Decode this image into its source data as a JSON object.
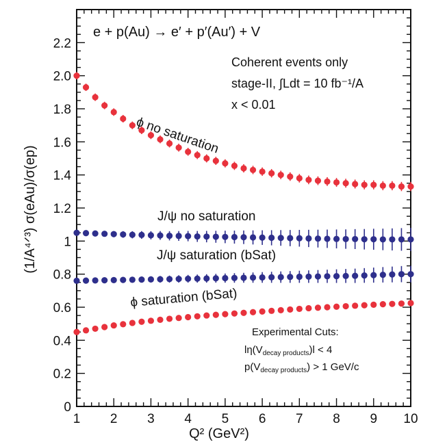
{
  "chart_data": {
    "type": "scatter",
    "xlabel": "Q² (GeV²)",
    "ylabel": "(1/A⁴ᐟ³) σ(eAu)/σ(ep)",
    "xlim": [
      1,
      10
    ],
    "ylim": [
      0,
      2.4
    ],
    "x_ticks": [
      1,
      2,
      3,
      4,
      5,
      6,
      7,
      8,
      9,
      10
    ],
    "y_ticks": [
      0,
      0.2,
      0.4,
      0.6,
      0.8,
      1,
      1.2,
      1.4,
      1.6,
      1.8,
      2.0,
      2.2
    ],
    "y_tick_labels": [
      "0",
      "0.2",
      "0.4",
      "0.6",
      "0.8",
      "1",
      "1.2",
      "1.4",
      "1.6",
      "1.8",
      "2.0",
      "2.2"
    ],
    "grid": false,
    "x": [
      1.0,
      1.25,
      1.5,
      1.75,
      2.0,
      2.25,
      2.5,
      2.75,
      3.0,
      3.25,
      3.5,
      3.75,
      4.0,
      4.25,
      4.5,
      4.75,
      5.0,
      5.25,
      5.5,
      5.75,
      6.0,
      6.25,
      6.5,
      6.75,
      7.0,
      7.25,
      7.5,
      7.75,
      8.0,
      8.25,
      8.5,
      8.75,
      9.0,
      9.25,
      9.5,
      9.75,
      10.0
    ],
    "series": [
      {
        "key": "phi_nosat",
        "color": "#e8323c",
        "label_main": "ϕ no saturation",
        "values": [
          2.0,
          1.93,
          1.87,
          1.82,
          1.78,
          1.74,
          1.7,
          1.67,
          1.64,
          1.615,
          1.59,
          1.565,
          1.54,
          1.52,
          1.5,
          1.485,
          1.47,
          1.455,
          1.44,
          1.43,
          1.42,
          1.41,
          1.4,
          1.39,
          1.38,
          1.37,
          1.365,
          1.36,
          1.355,
          1.35,
          1.345,
          1.34,
          1.34,
          1.335,
          1.335,
          1.33,
          1.33
        ],
        "err_start": 0.022,
        "err_end": 0.028
      },
      {
        "key": "jpsi_nosat",
        "color": "#2e2f8c",
        "label_main": "J/ψ no saturation",
        "values": [
          1.05,
          1.048,
          1.046,
          1.044,
          1.042,
          1.04,
          1.038,
          1.037,
          1.035,
          1.034,
          1.032,
          1.031,
          1.03,
          1.028,
          1.027,
          1.026,
          1.025,
          1.024,
          1.023,
          1.022,
          1.021,
          1.02,
          1.019,
          1.018,
          1.017,
          1.016,
          1.015,
          1.014,
          1.013,
          1.012,
          1.012,
          1.011,
          1.011,
          1.01,
          1.01,
          1.01,
          1.01
        ],
        "err_start": 0.012,
        "err_end": 0.07
      },
      {
        "key": "jpsi_sat",
        "color": "#2e2f8c",
        "label_main": "J/ψ saturation (bSat)",
        "values": [
          0.76,
          0.761,
          0.762,
          0.763,
          0.764,
          0.765,
          0.766,
          0.767,
          0.768,
          0.769,
          0.77,
          0.771,
          0.772,
          0.773,
          0.774,
          0.775,
          0.776,
          0.777,
          0.778,
          0.779,
          0.78,
          0.781,
          0.782,
          0.783,
          0.784,
          0.785,
          0.786,
          0.787,
          0.788,
          0.789,
          0.79,
          0.792,
          0.794,
          0.796,
          0.798,
          0.8,
          0.8
        ],
        "err_start": 0.01,
        "err_end": 0.05
      },
      {
        "key": "phi_sat",
        "color": "#e8323c",
        "label_main": "ϕ saturation (bSat)",
        "values": [
          0.45,
          0.46,
          0.47,
          0.48,
          0.49,
          0.497,
          0.505,
          0.512,
          0.518,
          0.524,
          0.53,
          0.535,
          0.54,
          0.545,
          0.55,
          0.554,
          0.558,
          0.562,
          0.566,
          0.57,
          0.574,
          0.578,
          0.582,
          0.586,
          0.59,
          0.594,
          0.597,
          0.6,
          0.603,
          0.606,
          0.609,
          0.612,
          0.615,
          0.618,
          0.62,
          0.622,
          0.625
        ],
        "err_start": 0.01,
        "err_end": 0.015
      }
    ],
    "annotations": {
      "reaction": "e  + p(Au) → e′ + p′(Au′) + V",
      "info_line1": "Coherent events only",
      "info_line2": "stage-II, ∫Ldt = 10 fb⁻¹/A",
      "info_line3": "x < 0.01",
      "cuts_title": "Experimental Cuts:",
      "cuts_line1": "lη(V",
      "cuts_line1_sub": "decay products",
      "cuts_line1_tail": ")l < 4",
      "cuts_line2": "p(V",
      "cuts_line2_sub": "decay products",
      "cuts_line2_tail": ") > 1 GeV/c"
    }
  }
}
